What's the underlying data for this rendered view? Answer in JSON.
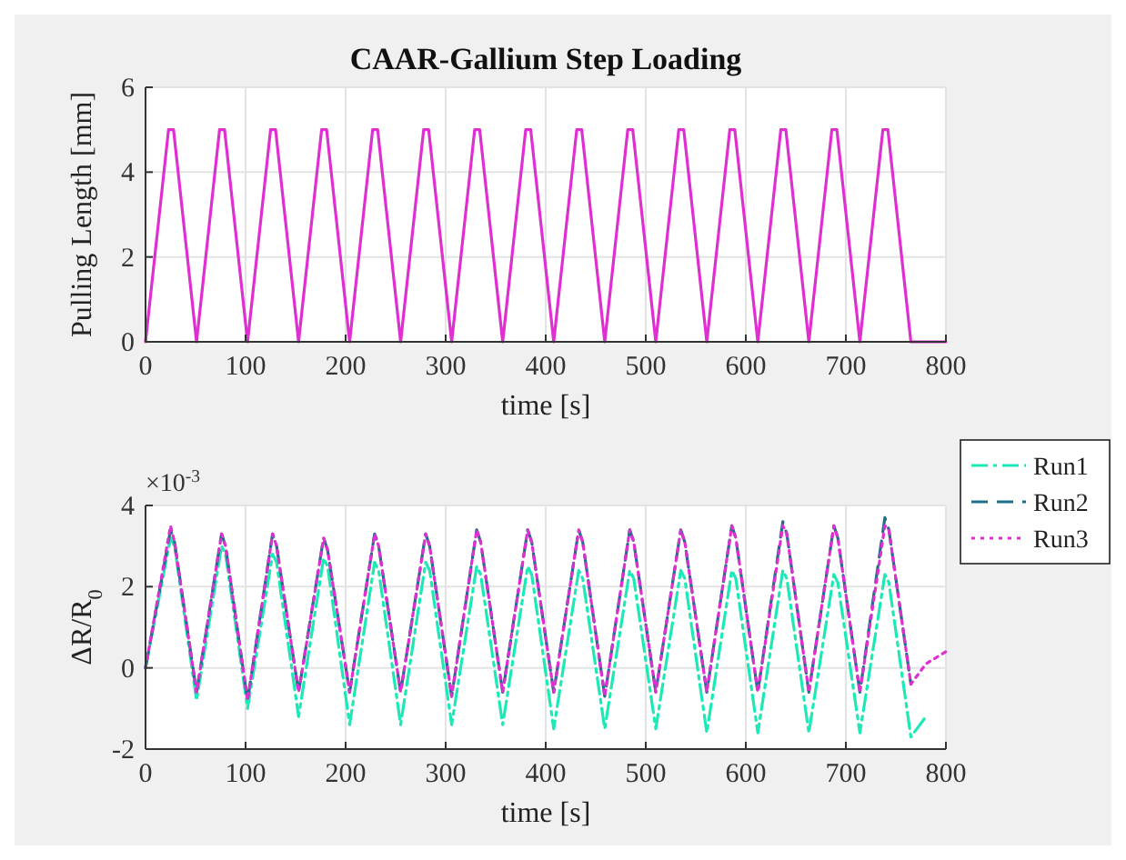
{
  "chart_data": [
    {
      "type": "line",
      "title": "CAAR-Gallium Step Loading",
      "xlabel": "time [s]",
      "ylabel": "Pulling Length [mm]",
      "xlim": [
        0,
        800
      ],
      "xticks": [
        0,
        100,
        200,
        300,
        400,
        500,
        600,
        700,
        800
      ],
      "ylim": [
        0,
        6
      ],
      "yticks": [
        0,
        2,
        4,
        6
      ],
      "grid": true,
      "legend": false,
      "x": [
        0,
        23,
        28,
        51,
        74,
        79,
        102,
        125,
        130,
        153,
        176,
        181,
        204,
        227,
        232,
        255,
        278,
        283,
        306,
        329,
        334,
        357,
        380,
        385,
        408,
        431,
        436,
        459,
        482,
        487,
        510,
        533,
        538,
        561,
        584,
        589,
        612,
        635,
        640,
        663,
        686,
        691,
        714,
        737,
        742,
        765,
        800
      ],
      "series": [
        {
          "color": "#e02fd0",
          "line_style": "solid",
          "values": [
            0,
            5,
            5,
            0,
            5,
            5,
            0,
            5,
            5,
            0,
            5,
            5,
            0,
            5,
            5,
            0,
            5,
            5,
            0,
            5,
            5,
            0,
            5,
            5,
            0,
            5,
            5,
            0,
            5,
            5,
            0,
            5,
            5,
            0,
            5,
            5,
            0,
            5,
            5,
            0,
            5,
            5,
            0,
            5,
            5,
            0,
            0
          ]
        }
      ]
    },
    {
      "type": "line",
      "xlabel": "time [s]",
      "ylabel": "ΔR/R$_{0}$",
      "annotations": [
        "×10$^{-3}$"
      ],
      "xlim": [
        0,
        800
      ],
      "xticks": [
        0,
        100,
        200,
        300,
        400,
        500,
        600,
        700,
        800
      ],
      "ylim": [
        -2,
        4
      ],
      "yticks": [
        -2,
        0,
        2,
        4
      ],
      "grid": true,
      "legend": "right",
      "series": [
        {
          "name": "Run1",
          "color": "#1de9b6",
          "line_style": "dashdot",
          "x": [
            0,
            25,
            29,
            51,
            76,
            80,
            102,
            127,
            131,
            153,
            178,
            182,
            204,
            229,
            233,
            255,
            280,
            284,
            306,
            331,
            335,
            357,
            382,
            386,
            408,
            433,
            437,
            459,
            484,
            488,
            510,
            535,
            539,
            561,
            586,
            590,
            612,
            637,
            641,
            663,
            688,
            692,
            714,
            739,
            743,
            765,
            780
          ],
          "values": [
            0,
            3.2,
            3.0,
            -0.8,
            3.0,
            2.8,
            -1.0,
            2.8,
            2.6,
            -1.2,
            2.7,
            2.5,
            -1.4,
            2.6,
            2.4,
            -1.4,
            2.6,
            2.4,
            -1.4,
            2.5,
            2.3,
            -1.4,
            2.5,
            2.3,
            -1.5,
            2.4,
            2.2,
            -1.5,
            2.4,
            2.2,
            -1.5,
            2.4,
            2.2,
            -1.6,
            2.4,
            2.2,
            -1.6,
            2.4,
            2.2,
            -1.6,
            2.3,
            2.1,
            -1.6,
            2.3,
            2.1,
            -1.7,
            -1.2
          ]
        },
        {
          "name": "Run2",
          "color": "#1f6f8b",
          "line_style": "dashed",
          "x": [
            0,
            25,
            29,
            51,
            76,
            80,
            102,
            127,
            131,
            153,
            178,
            182,
            204,
            229,
            233,
            255,
            280,
            284,
            306,
            331,
            335,
            357,
            382,
            386,
            408,
            433,
            437,
            459,
            484,
            488,
            510,
            535,
            539,
            561,
            586,
            590,
            612,
            637,
            641,
            663,
            688,
            692,
            714,
            739,
            743,
            765
          ],
          "values": [
            0,
            3.4,
            3.1,
            -0.6,
            3.3,
            3.0,
            -0.8,
            3.3,
            3.0,
            -0.6,
            3.2,
            2.9,
            -0.6,
            3.3,
            3.0,
            -0.6,
            3.3,
            3.0,
            -0.7,
            3.4,
            3.1,
            -0.6,
            3.4,
            3.1,
            -0.6,
            3.4,
            3.1,
            -0.7,
            3.4,
            3.1,
            -0.6,
            3.4,
            3.1,
            -0.6,
            3.5,
            3.2,
            -0.6,
            3.6,
            3.3,
            -0.6,
            3.5,
            3.2,
            -0.6,
            3.7,
            3.4,
            -0.4
          ]
        },
        {
          "name": "Run3",
          "color": "#e02fd0",
          "line_style": "dotted",
          "x": [
            0,
            25,
            29,
            51,
            76,
            80,
            102,
            127,
            131,
            153,
            178,
            182,
            204,
            229,
            233,
            255,
            280,
            284,
            306,
            331,
            335,
            357,
            382,
            386,
            408,
            433,
            437,
            459,
            484,
            488,
            510,
            535,
            539,
            561,
            586,
            590,
            612,
            637,
            641,
            663,
            688,
            692,
            714,
            739,
            743,
            765,
            780,
            800
          ],
          "values": [
            0,
            3.5,
            3.1,
            -0.6,
            3.3,
            3.0,
            -0.8,
            3.3,
            3.0,
            -0.6,
            3.2,
            2.9,
            -0.6,
            3.3,
            3.0,
            -0.6,
            3.3,
            3.0,
            -0.7,
            3.4,
            3.1,
            -0.6,
            3.4,
            3.1,
            -0.6,
            3.4,
            3.1,
            -0.7,
            3.4,
            3.1,
            -0.6,
            3.4,
            3.1,
            -0.6,
            3.5,
            3.2,
            -0.6,
            3.5,
            3.3,
            -0.6,
            3.5,
            3.2,
            -0.6,
            3.5,
            3.4,
            -0.4,
            0.1,
            0.4
          ]
        }
      ]
    }
  ]
}
